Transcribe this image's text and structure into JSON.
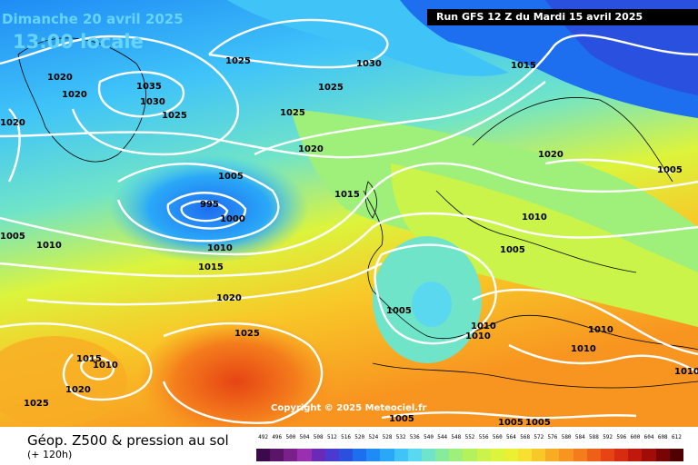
{
  "header": {
    "date": "Dimanche 20 avril 2025",
    "time": "13:00 locale",
    "run": "Run GFS 12 Z du Mardi 15 avril 2025"
  },
  "map": {
    "copyright": "Copyright © 2025 Meteociel.fr",
    "isobar_labels": [
      "1020",
      "1020",
      "1020",
      "1035",
      "1030",
      "1025",
      "1025",
      "1030",
      "1025",
      "1015",
      "1025",
      "1020",
      "1020",
      "1005",
      "1005",
      "995",
      "1000",
      "1015",
      "1005",
      "1010",
      "1010",
      "1015",
      "1010",
      "1005",
      "1020",
      "1005",
      "1010",
      "1010",
      "1010",
      "1025",
      "1015",
      "1010",
      "1010",
      "1020",
      "1025",
      "1005",
      "1005",
      "1005",
      "1010"
    ]
  },
  "footer": {
    "title": "Géop. Z500 & pression au sol",
    "subtitle": "(+ 120h)"
  },
  "legend": {
    "labels": [
      "492",
      "496",
      "500",
      "504",
      "508",
      "512",
      "516",
      "520",
      "524",
      "528",
      "532",
      "536",
      "540",
      "544",
      "548",
      "552",
      "556",
      "560",
      "564",
      "568",
      "572",
      "576",
      "580",
      "584",
      "588",
      "592",
      "596",
      "600",
      "604",
      "608",
      "612"
    ],
    "colors": [
      "#3a0a4a",
      "#5a1468",
      "#7a208a",
      "#9a30b0",
      "#6a2ab8",
      "#4a3ad0",
      "#2a50e0",
      "#1e6ef0",
      "#1f8cf5",
      "#2aa8f8",
      "#40c4f8",
      "#5ad8f0",
      "#70e4c8",
      "#86ec9c",
      "#9ef07a",
      "#b4f25c",
      "#caf44a",
      "#dcf43c",
      "#ecf034",
      "#f8e030",
      "#f8c828",
      "#f8ac24",
      "#f89420",
      "#f47c1c",
      "#ee6018",
      "#e64414",
      "#d82c10",
      "#c0180c",
      "#a00c08",
      "#780404",
      "#500000"
    ]
  }
}
